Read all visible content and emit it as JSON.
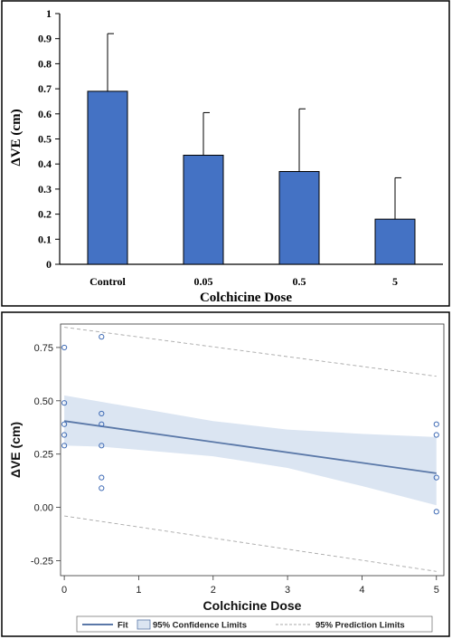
{
  "chart_data": [
    {
      "type": "bar",
      "ylabel": "ΔVE (cm)",
      "xlabel": "Colchicine Dose",
      "categories": [
        "Control",
        "0.05",
        "0.5",
        "5"
      ],
      "values": [
        0.69,
        0.435,
        0.37,
        0.18
      ],
      "error_upper": [
        0.92,
        0.605,
        0.62,
        0.345
      ],
      "ylim": [
        0,
        1
      ],
      "yticks": [
        0,
        0.1,
        0.2,
        0.3,
        0.4,
        0.5,
        0.6,
        0.7,
        0.8,
        0.9,
        1
      ],
      "ytick_labels": [
        "0",
        "0.1",
        "0.2",
        "0.3",
        "0.4",
        "0.5",
        "0.6",
        "0.7",
        "0.8",
        "0.9",
        "1"
      ],
      "grid": false,
      "colors": {
        "bar": "#4472c4",
        "bar_edge": "#000000",
        "error": "#000000"
      }
    },
    {
      "type": "scatter",
      "ylabel": "ΔVE (cm)",
      "xlabel": "Colchicine Dose",
      "xlim": [
        -0.05,
        5.1
      ],
      "ylim": [
        -0.32,
        0.86
      ],
      "xticks": [
        0,
        1,
        2,
        3,
        4,
        5
      ],
      "xtick_labels": [
        "0",
        "1",
        "2",
        "3",
        "4",
        "5"
      ],
      "yticks": [
        -0.25,
        0,
        0.25,
        0.5,
        0.75
      ],
      "ytick_labels": [
        "-0.25",
        "0.00",
        "0.25",
        "0.50",
        "0.75"
      ],
      "points": [
        {
          "x": 0,
          "y": 0.75
        },
        {
          "x": 0,
          "y": 0.49
        },
        {
          "x": 0,
          "y": 0.39
        },
        {
          "x": 0,
          "y": 0.34
        },
        {
          "x": 0,
          "y": 0.29
        },
        {
          "x": 0.5,
          "y": 0.8
        },
        {
          "x": 0.5,
          "y": 0.44
        },
        {
          "x": 0.5,
          "y": 0.39
        },
        {
          "x": 0.5,
          "y": 0.29
        },
        {
          "x": 0.5,
          "y": 0.14
        },
        {
          "x": 0.5,
          "y": 0.09
        },
        {
          "x": 5,
          "y": 0.39
        },
        {
          "x": 5,
          "y": 0.34
        },
        {
          "x": 5,
          "y": 0.14
        },
        {
          "x": 5,
          "y": -0.02
        }
      ],
      "fit": [
        {
          "x": 0,
          "y": 0.405
        },
        {
          "x": 5,
          "y": 0.16
        }
      ],
      "confidence_band": [
        {
          "x": 0,
          "lower": 0.29,
          "upper": 0.525
        },
        {
          "x": 0.5,
          "lower": 0.285,
          "upper": 0.495
        },
        {
          "x": 1,
          "lower": 0.27,
          "upper": 0.465
        },
        {
          "x": 2,
          "lower": 0.24,
          "upper": 0.405
        },
        {
          "x": 3,
          "lower": 0.185,
          "upper": 0.365
        },
        {
          "x": 4,
          "lower": 0.1,
          "upper": 0.345
        },
        {
          "x": 5,
          "lower": 0.01,
          "upper": 0.33
        }
      ],
      "prediction_limits": {
        "upper": [
          {
            "x": 0,
            "y": 0.845
          },
          {
            "x": 5,
            "y": 0.615
          }
        ],
        "lower": [
          {
            "x": 0,
            "y": -0.04
          },
          {
            "x": 5,
            "y": -0.3
          }
        ]
      },
      "legend": {
        "placement": "bottom",
        "items": [
          "Fit",
          "95% Confidence Limits",
          "95% Prediction Limits"
        ]
      },
      "colors": {
        "point": "#3f6bb5",
        "fit": "#5a78a8",
        "band": "#dbe5f2",
        "prediction": "#a8a8a8"
      }
    }
  ]
}
